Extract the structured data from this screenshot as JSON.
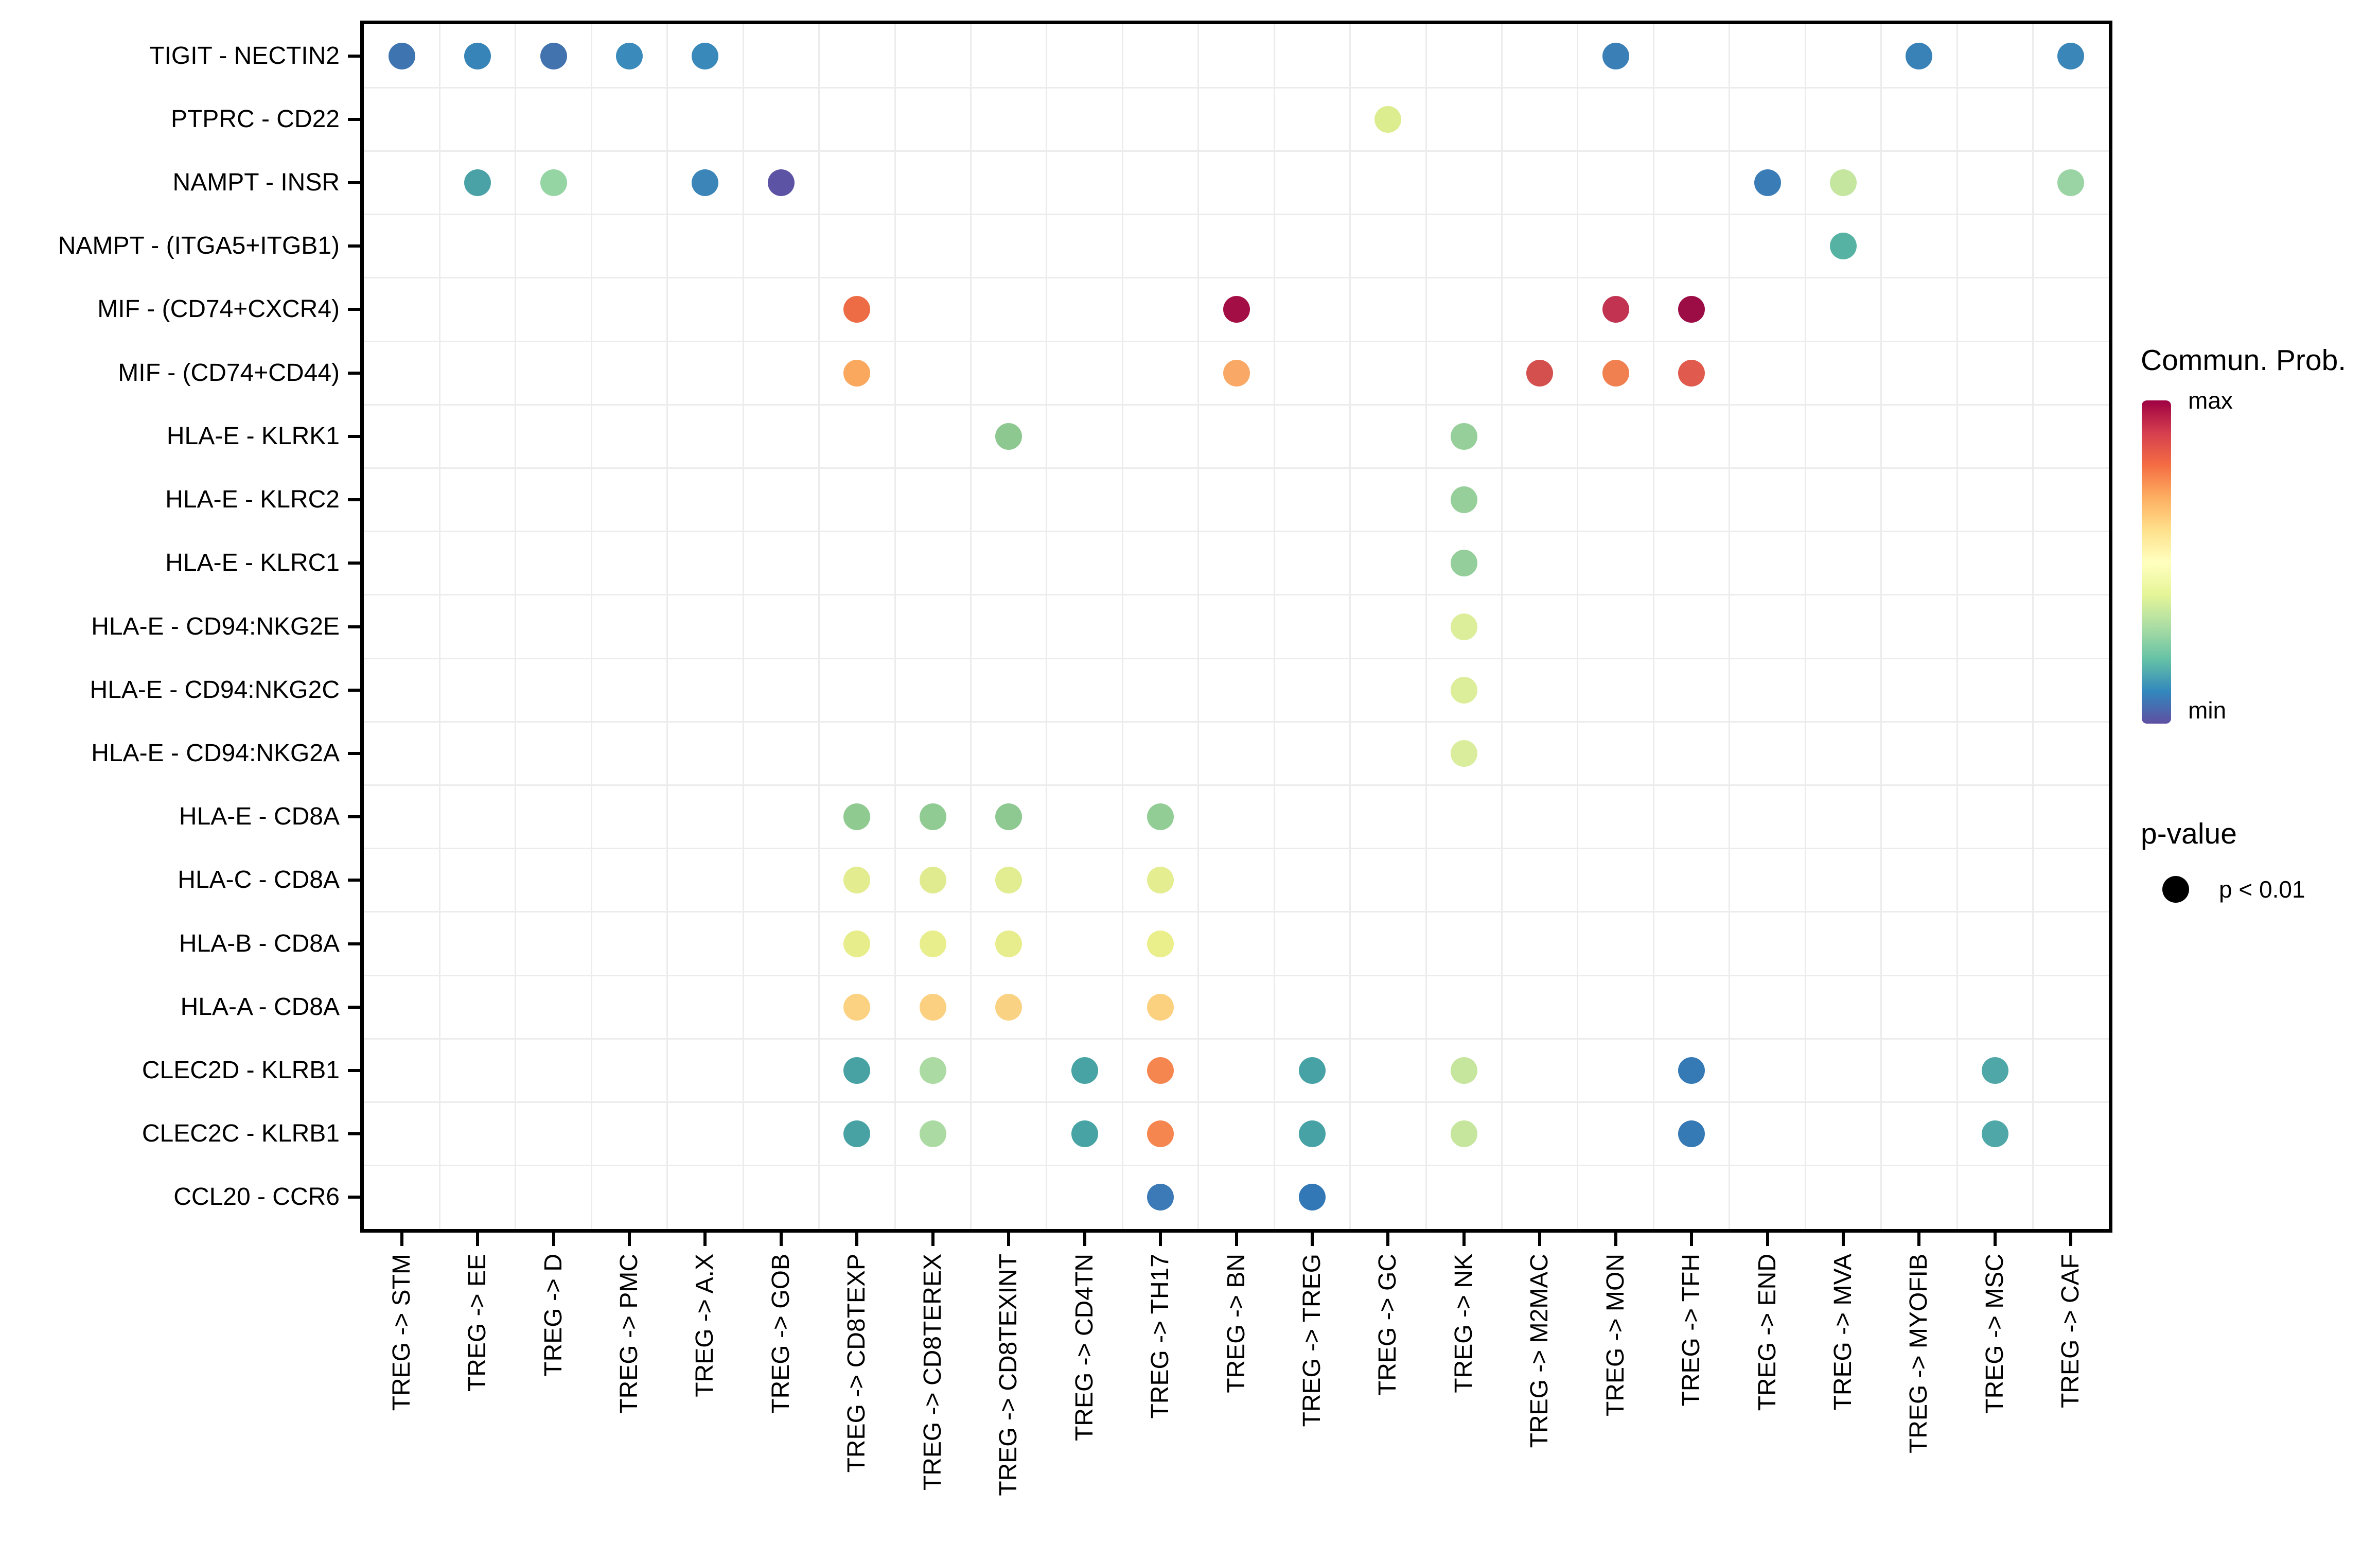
{
  "legend": {
    "colorbar_title": "Commun. Prob.",
    "max_label": "max",
    "min_label": "min",
    "pvalue_title": "p-value",
    "pvalue_dot_label": "p < 0.01",
    "colorbar_colors": [
      "#9E0142",
      "#D53E4F",
      "#F46D43",
      "#FDAE61",
      "#FEE08B",
      "#FFFFBF",
      "#E6F598",
      "#ABDDA4",
      "#66C2A5",
      "#3288BD",
      "#5E4FA2"
    ]
  },
  "chart_data": {
    "type": "scatter",
    "title": "",
    "xlabel": "",
    "ylabel": "",
    "grid": true,
    "legend_position": "right",
    "color_scale": "Spectral (max = dark red, min = purple-blue)",
    "dot_size_meaning": "p < 0.01",
    "x_categories": [
      "TREG -> STM",
      "TREG -> EE",
      "TREG -> D",
      "TREG -> PMC",
      "TREG -> A.X",
      "TREG -> GOB",
      "TREG -> CD8TEXP",
      "TREG -> CD8TEREX",
      "TREG -> CD8TEXINT",
      "TREG -> CD4TN",
      "TREG -> TH17",
      "TREG -> BN",
      "TREG -> TREG",
      "TREG -> GC",
      "TREG -> NK",
      "TREG -> M2MAC",
      "TREG -> MON",
      "TREG -> TFH",
      "TREG -> END",
      "TREG -> MVA",
      "TREG -> MYOFIB",
      "TREG -> MSC",
      "TREG -> CAF"
    ],
    "y_categories": [
      "TIGIT - NECTIN2",
      "PTPRC - CD22",
      "NAMPT - INSR",
      "NAMPT - (ITGA5+ITGB1)",
      "MIF - (CD74+CXCR4)",
      "MIF - (CD74+CD44)",
      "HLA-E - KLRK1",
      "HLA-E - KLRC2",
      "HLA-E - KLRC1",
      "HLA-E - CD94:NKG2E",
      "HLA-E - CD94:NKG2C",
      "HLA-E - CD94:NKG2A",
      "HLA-E - CD8A",
      "HLA-C - CD8A",
      "HLA-B - CD8A",
      "HLA-A - CD8A",
      "CLEC2D - KLRB1",
      "CLEC2C - KLRB1",
      "CCL20 - CCR6"
    ],
    "points": [
      {
        "x": "TREG -> STM",
        "y": "TIGIT - NECTIN2",
        "c": "#3E74B0"
      },
      {
        "x": "TREG -> EE",
        "y": "TIGIT - NECTIN2",
        "c": "#3684B8"
      },
      {
        "x": "TREG -> D",
        "y": "TIGIT - NECTIN2",
        "c": "#4273AF"
      },
      {
        "x": "TREG -> PMC",
        "y": "TIGIT - NECTIN2",
        "c": "#3A8BBC"
      },
      {
        "x": "TREG -> A.X",
        "y": "TIGIT - NECTIN2",
        "c": "#398ABB"
      },
      {
        "x": "TREG -> MON",
        "y": "TIGIT - NECTIN2",
        "c": "#3A80B7"
      },
      {
        "x": "TREG -> MYOFIB",
        "y": "TIGIT - NECTIN2",
        "c": "#3982B8"
      },
      {
        "x": "TREG -> CAF",
        "y": "TIGIT - NECTIN2",
        "c": "#3A86B9"
      },
      {
        "x": "TREG -> GC",
        "y": "PTPRC - CD22",
        "c": "#DCED90"
      },
      {
        "x": "TREG -> EE",
        "y": "NAMPT - INSR",
        "c": "#4BA2A6"
      },
      {
        "x": "TREG -> D",
        "y": "NAMPT - INSR",
        "c": "#95D5A4"
      },
      {
        "x": "TREG -> A.X",
        "y": "NAMPT - INSR",
        "c": "#3C85B8"
      },
      {
        "x": "TREG -> GOB",
        "y": "NAMPT - INSR",
        "c": "#5C53A5"
      },
      {
        "x": "TREG -> END",
        "y": "NAMPT - INSR",
        "c": "#3A7DB6"
      },
      {
        "x": "TREG -> MVA",
        "y": "NAMPT - INSR",
        "c": "#C4E69F"
      },
      {
        "x": "TREG -> CAF",
        "y": "NAMPT - INSR",
        "c": "#9BD4A4"
      },
      {
        "x": "TREG -> MVA",
        "y": "NAMPT - (ITGA5+ITGB1)",
        "c": "#56B2A2"
      },
      {
        "x": "TREG -> CD8TEXP",
        "y": "MIF - (CD74+CXCR4)",
        "c": "#ED6B45"
      },
      {
        "x": "TREG -> BN",
        "y": "MIF - (CD74+CXCR4)",
        "c": "#A30E45"
      },
      {
        "x": "TREG -> MON",
        "y": "MIF - (CD74+CXCR4)",
        "c": "#C23351"
      },
      {
        "x": "TREG -> TFH",
        "y": "MIF - (CD74+CXCR4)",
        "c": "#9C0C45"
      },
      {
        "x": "TREG -> CD8TEXP",
        "y": "MIF - (CD74+CD44)",
        "c": "#F9A85E"
      },
      {
        "x": "TREG -> BN",
        "y": "MIF - (CD74+CD44)",
        "c": "#F9A965"
      },
      {
        "x": "TREG -> M2MAC",
        "y": "MIF - (CD74+CD44)",
        "c": "#D4504F"
      },
      {
        "x": "TREG -> MON",
        "y": "MIF - (CD74+CD44)",
        "c": "#F08050"
      },
      {
        "x": "TREG -> TFH",
        "y": "MIF - (CD74+CD44)",
        "c": "#E05A4D"
      },
      {
        "x": "TREG -> CD8TEXINT",
        "y": "HLA-E - KLRK1",
        "c": "#8CC88F"
      },
      {
        "x": "TREG -> NK",
        "y": "HLA-E - KLRK1",
        "c": "#97CF9B"
      },
      {
        "x": "TREG -> NK",
        "y": "HLA-E - KLRC2",
        "c": "#97CF9B"
      },
      {
        "x": "TREG -> NK",
        "y": "HLA-E - KLRC1",
        "c": "#94CE9A"
      },
      {
        "x": "TREG -> NK",
        "y": "HLA-E - CD94:NKG2E",
        "c": "#DDEE9A"
      },
      {
        "x": "TREG -> NK",
        "y": "HLA-E - CD94:NKG2C",
        "c": "#DDEE9B"
      },
      {
        "x": "TREG -> NK",
        "y": "HLA-E - CD94:NKG2A",
        "c": "#DAED9C"
      },
      {
        "x": "TREG -> CD8TEXP",
        "y": "HLA-E - CD8A",
        "c": "#8FCB90"
      },
      {
        "x": "TREG -> CD8TEREX",
        "y": "HLA-E - CD8A",
        "c": "#8FCB92"
      },
      {
        "x": "TREG -> CD8TEXINT",
        "y": "HLA-E - CD8A",
        "c": "#8DC991"
      },
      {
        "x": "TREG -> TH17",
        "y": "HLA-E - CD8A",
        "c": "#92CD96"
      },
      {
        "x": "TREG -> CD8TEXP",
        "y": "HLA-C - CD8A",
        "c": "#E3EC8F"
      },
      {
        "x": "TREG -> CD8TEREX",
        "y": "HLA-C - CD8A",
        "c": "#E0EB90"
      },
      {
        "x": "TREG -> CD8TEXINT",
        "y": "HLA-C - CD8A",
        "c": "#E2EC90"
      },
      {
        "x": "TREG -> TH17",
        "y": "HLA-C - CD8A",
        "c": "#E4ED90"
      },
      {
        "x": "TREG -> CD8TEXP",
        "y": "HLA-B - CD8A",
        "c": "#E8ED8C"
      },
      {
        "x": "TREG -> CD8TEREX",
        "y": "HLA-B - CD8A",
        "c": "#E9EE8C"
      },
      {
        "x": "TREG -> CD8TEXINT",
        "y": "HLA-B - CD8A",
        "c": "#E7ED8D"
      },
      {
        "x": "TREG -> TH17",
        "y": "HLA-B - CD8A",
        "c": "#EAEE8B"
      },
      {
        "x": "TREG -> CD8TEXP",
        "y": "HLA-A - CD8A",
        "c": "#FBD282"
      },
      {
        "x": "TREG -> CD8TEREX",
        "y": "HLA-A - CD8A",
        "c": "#FBD081"
      },
      {
        "x": "TREG -> CD8TEXINT",
        "y": "HLA-A - CD8A",
        "c": "#FAD283"
      },
      {
        "x": "TREG -> TH17",
        "y": "HLA-A - CD8A",
        "c": "#FBD07F"
      },
      {
        "x": "TREG -> CD8TEXP",
        "y": "CLEC2D - KLRB1",
        "c": "#48A2A4"
      },
      {
        "x": "TREG -> CD8TEREX",
        "y": "CLEC2D - KLRB1",
        "c": "#ABDBA2"
      },
      {
        "x": "TREG -> CD4TN",
        "y": "CLEC2D - KLRB1",
        "c": "#48A3A5"
      },
      {
        "x": "TREG -> TH17",
        "y": "CLEC2D - KLRB1",
        "c": "#F6864F"
      },
      {
        "x": "TREG -> TREG",
        "y": "CLEC2D - KLRB1",
        "c": "#47A2A6"
      },
      {
        "x": "TREG -> NK",
        "y": "CLEC2D - KLRB1",
        "c": "#C6E69E"
      },
      {
        "x": "TREG -> TFH",
        "y": "CLEC2D - KLRB1",
        "c": "#3579B5"
      },
      {
        "x": "TREG -> MSC",
        "y": "CLEC2D - KLRB1",
        "c": "#4FA7A8"
      },
      {
        "x": "TREG -> CD8TEXP",
        "y": "CLEC2C - KLRB1",
        "c": "#48A2A4"
      },
      {
        "x": "TREG -> CD8TEREX",
        "y": "CLEC2C - KLRB1",
        "c": "#ABDBA2"
      },
      {
        "x": "TREG -> CD4TN",
        "y": "CLEC2C - KLRB1",
        "c": "#48A3A5"
      },
      {
        "x": "TREG -> TH17",
        "y": "CLEC2C - KLRB1",
        "c": "#F6864F"
      },
      {
        "x": "TREG -> TREG",
        "y": "CLEC2C - KLRB1",
        "c": "#47A2A6"
      },
      {
        "x": "TREG -> NK",
        "y": "CLEC2C - KLRB1",
        "c": "#C6E69E"
      },
      {
        "x": "TREG -> TFH",
        "y": "CLEC2C - KLRB1",
        "c": "#3579B5"
      },
      {
        "x": "TREG -> MSC",
        "y": "CLEC2C - KLRB1",
        "c": "#4FA7A8"
      },
      {
        "x": "TREG -> TH17",
        "y": "CCL20 - CCR6",
        "c": "#3B7AB6"
      },
      {
        "x": "TREG -> TREG",
        "y": "CCL20 - CCR6",
        "c": "#3278B6"
      }
    ]
  },
  "styles": {
    "grid_color": "#ECECEC",
    "axis_color": "#000000",
    "dot_color_max": "#9E0142",
    "dot_color_min": "#5E4FA2"
  }
}
